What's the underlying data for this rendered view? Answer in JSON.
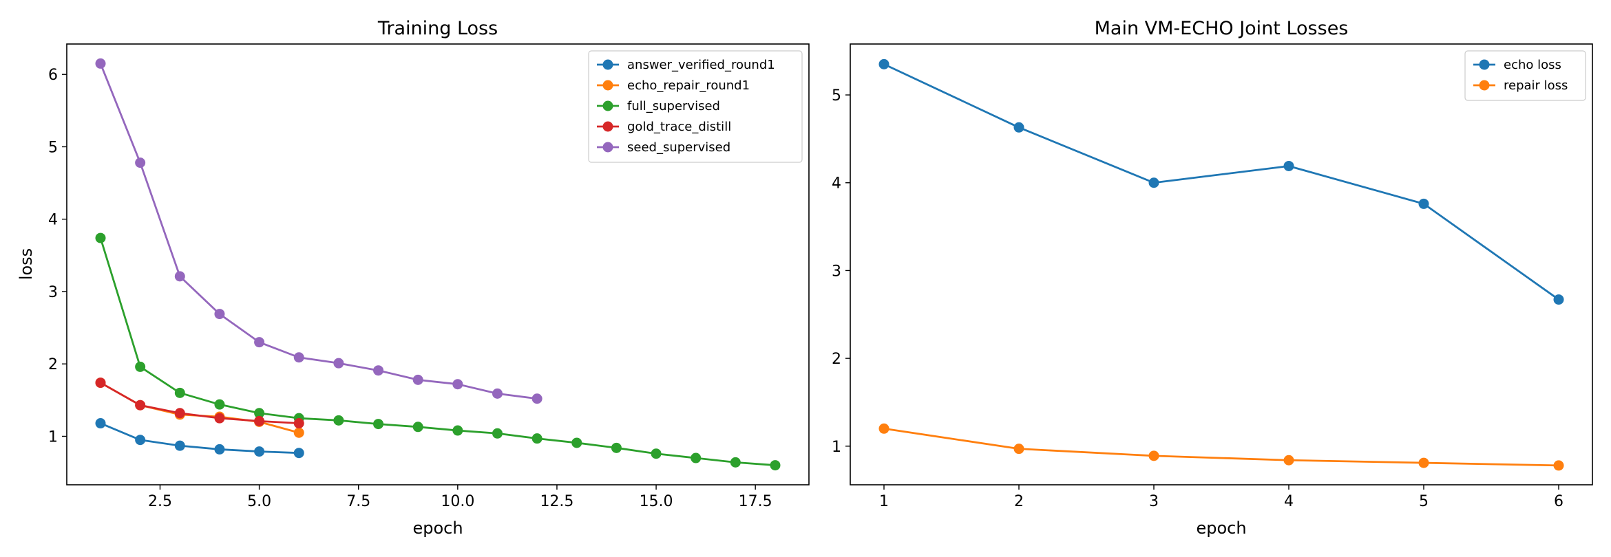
{
  "chart_data": [
    {
      "type": "line",
      "title": "Training Loss",
      "xlabel": "epoch",
      "ylabel": "loss",
      "xlim": [
        0.15,
        18.85
      ],
      "ylim": [
        0.33,
        6.42
      ],
      "xticks": [
        2.5,
        5.0,
        7.5,
        10.0,
        12.5,
        15.0,
        17.5
      ],
      "xtick_labels": [
        "2.5",
        "5.0",
        "7.5",
        "10.0",
        "12.5",
        "15.0",
        "17.5"
      ],
      "yticks": [
        1,
        2,
        3,
        4,
        5,
        6
      ],
      "ytick_labels": [
        "1",
        "2",
        "3",
        "4",
        "5",
        "6"
      ],
      "grid": false,
      "legend_position": "top-right",
      "series": [
        {
          "name": "answer_verified_round1",
          "color": "#1f77b4",
          "x": [
            1,
            2,
            3,
            4,
            5,
            6
          ],
          "y": [
            1.18,
            0.95,
            0.87,
            0.82,
            0.79,
            0.77
          ]
        },
        {
          "name": "echo_repair_round1",
          "color": "#ff7f0e",
          "x": [
            1,
            2,
            3,
            4,
            5,
            6
          ],
          "y": [
            1.74,
            1.43,
            1.3,
            1.27,
            1.2,
            1.05
          ]
        },
        {
          "name": "full_supervised",
          "color": "#2ca02c",
          "x": [
            1,
            2,
            3,
            4,
            5,
            6,
            7,
            8,
            9,
            10,
            11,
            12,
            13,
            14,
            15,
            16,
            17,
            18
          ],
          "y": [
            3.74,
            1.96,
            1.6,
            1.44,
            1.32,
            1.25,
            1.22,
            1.17,
            1.13,
            1.08,
            1.04,
            0.97,
            0.91,
            0.84,
            0.76,
            0.7,
            0.64,
            0.6
          ]
        },
        {
          "name": "gold_trace_distill",
          "color": "#d62728",
          "x": [
            1,
            2,
            3,
            4,
            5,
            6
          ],
          "y": [
            1.74,
            1.43,
            1.32,
            1.25,
            1.21,
            1.18
          ]
        },
        {
          "name": "seed_supervised",
          "color": "#9467bd",
          "x": [
            1,
            2,
            3,
            4,
            5,
            6,
            7,
            8,
            9,
            10,
            11,
            12
          ],
          "y": [
            6.15,
            4.78,
            3.21,
            2.69,
            2.3,
            2.09,
            2.01,
            1.91,
            1.78,
            1.72,
            1.59,
            1.52
          ]
        }
      ]
    },
    {
      "type": "line",
      "title": "Main VM-ECHO Joint Losses",
      "xlabel": "epoch",
      "ylabel": "",
      "xlim": [
        0.75,
        6.25
      ],
      "ylim": [
        0.56,
        5.58
      ],
      "xticks": [
        1,
        2,
        3,
        4,
        5,
        6
      ],
      "xtick_labels": [
        "1",
        "2",
        "3",
        "4",
        "5",
        "6"
      ],
      "yticks": [
        1,
        2,
        3,
        4,
        5
      ],
      "ytick_labels": [
        "1",
        "2",
        "3",
        "4",
        "5"
      ],
      "grid": false,
      "legend_position": "top-right",
      "series": [
        {
          "name": "echo loss",
          "color": "#1f77b4",
          "x": [
            1,
            2,
            3,
            4,
            5,
            6
          ],
          "y": [
            5.35,
            4.63,
            4.0,
            4.19,
            3.76,
            2.67
          ]
        },
        {
          "name": "repair loss",
          "color": "#ff7f0e",
          "x": [
            1,
            2,
            3,
            4,
            5,
            6
          ],
          "y": [
            1.2,
            0.97,
            0.89,
            0.84,
            0.81,
            0.78
          ]
        }
      ]
    }
  ]
}
